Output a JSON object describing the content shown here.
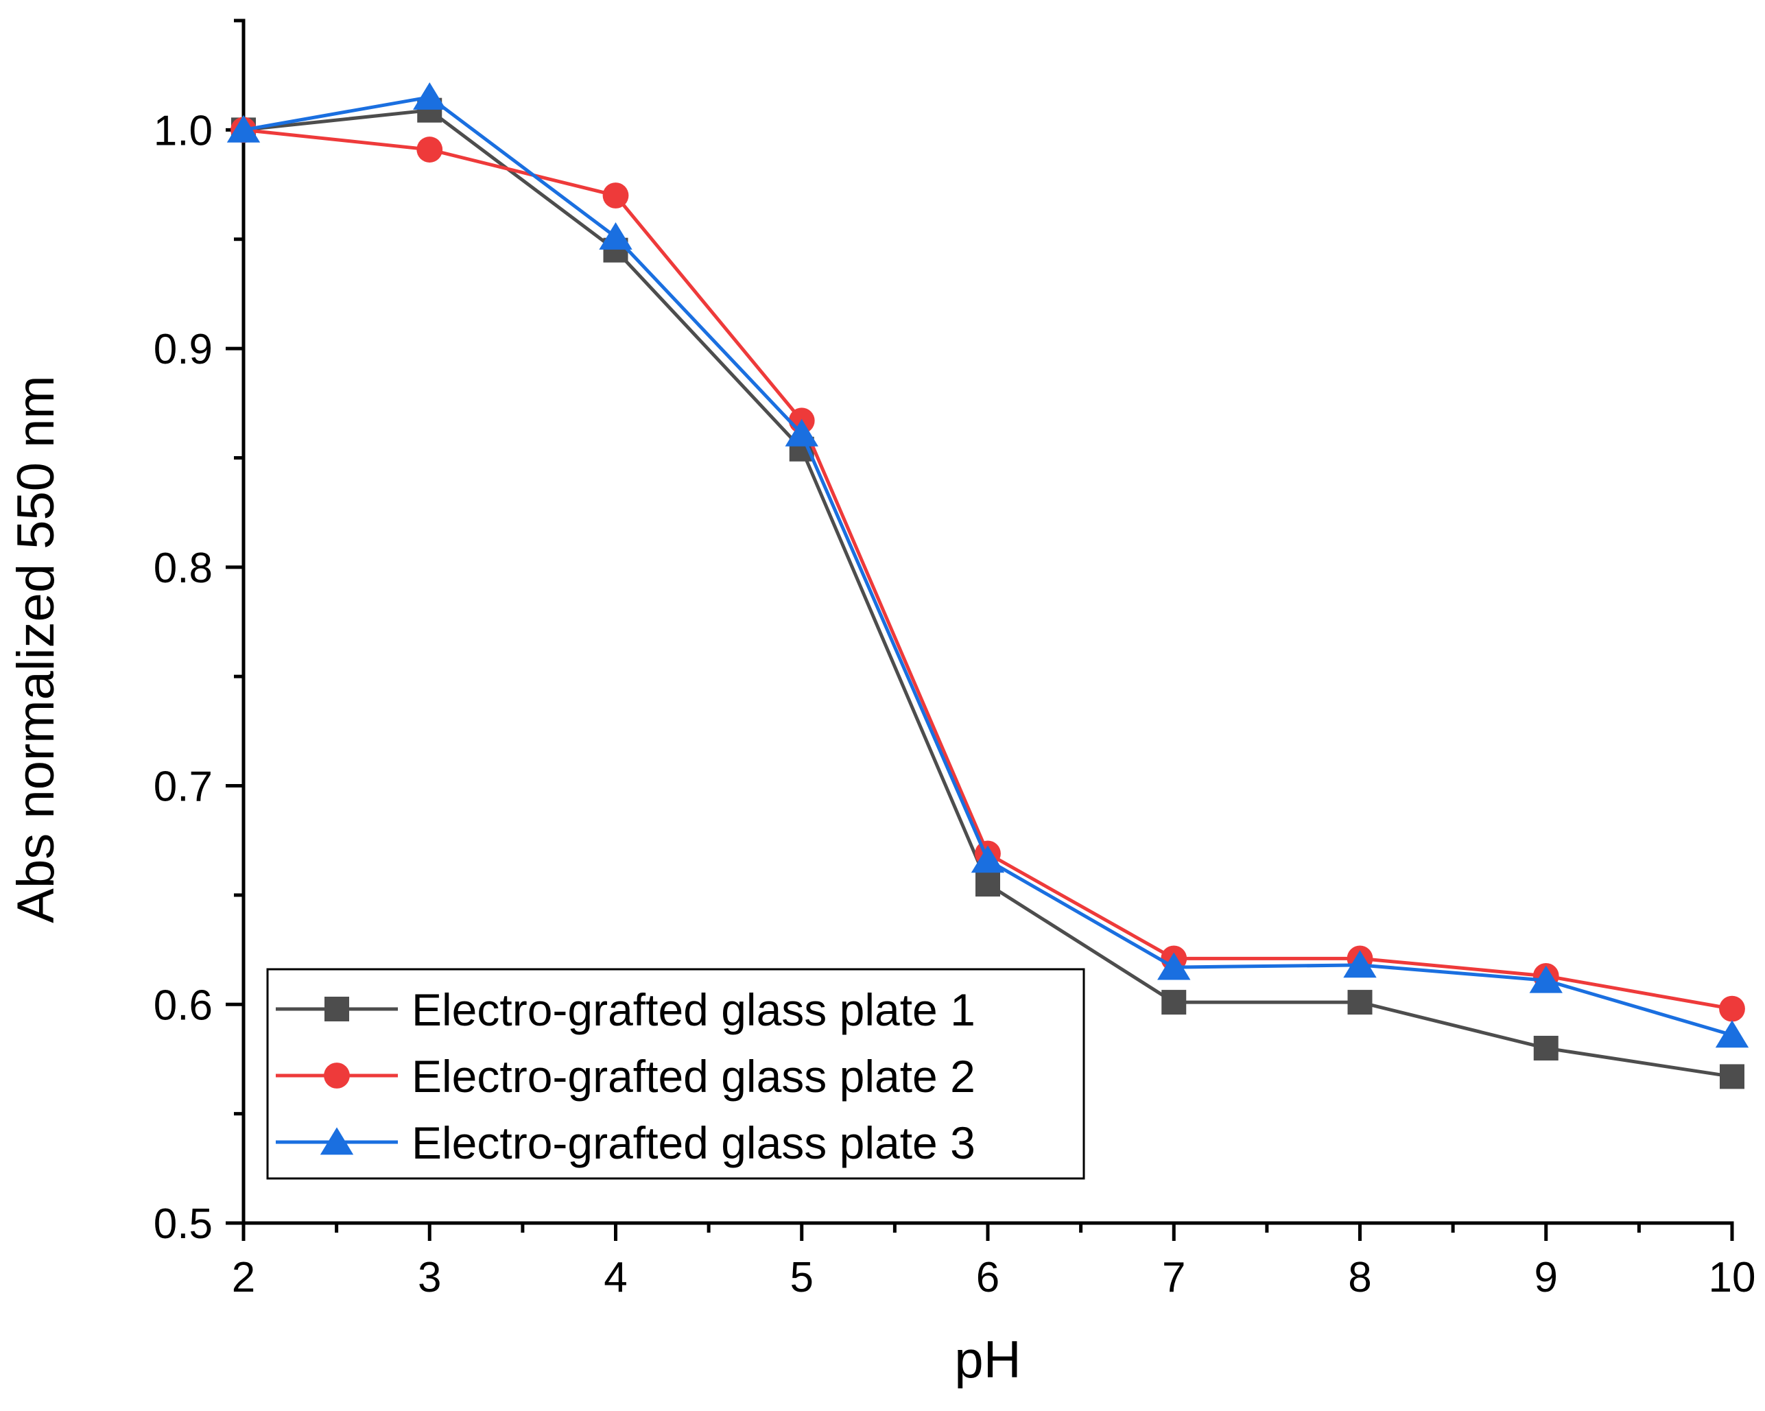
{
  "chart_data": {
    "type": "line",
    "title": "",
    "xlabel": "pH",
    "ylabel": "Abs normalized 550 nm",
    "xlim": [
      2,
      10
    ],
    "ylim": [
      0.5,
      1.05
    ],
    "x_ticks": [
      2,
      3,
      4,
      5,
      6,
      7,
      8,
      9,
      10
    ],
    "x_tick_labels": [
      "2",
      "3",
      "4",
      "5",
      "6",
      "7",
      "8",
      "9",
      "10"
    ],
    "y_ticks": [
      0.5,
      0.6,
      0.7,
      0.8,
      0.9,
      1.0
    ],
    "y_tick_labels": [
      "0.5",
      "0.6",
      "0.7",
      "0.8",
      "0.9",
      "1.0"
    ],
    "grid": false,
    "legend_position": "bottom-left",
    "x": [
      2,
      3,
      4,
      5,
      6,
      7,
      8,
      9,
      10
    ],
    "series": [
      {
        "name": "Electro-grafted glass plate 1",
        "color": "#4d4d4d",
        "marker": "square",
        "values": [
          1.0,
          1.009,
          0.945,
          0.854,
          0.655,
          0.601,
          0.601,
          0.58,
          0.567
        ]
      },
      {
        "name": "Electro-grafted glass plate 2",
        "color": "#ee3a3a",
        "marker": "circle",
        "values": [
          1.0,
          0.991,
          0.97,
          0.867,
          0.669,
          0.621,
          0.621,
          0.613,
          0.598
        ]
      },
      {
        "name": "Electro-grafted glass plate 3",
        "color": "#1a6fe0",
        "marker": "triangle",
        "values": [
          1.0,
          1.015,
          0.951,
          0.861,
          0.666,
          0.617,
          0.618,
          0.611,
          0.586
        ]
      }
    ]
  }
}
